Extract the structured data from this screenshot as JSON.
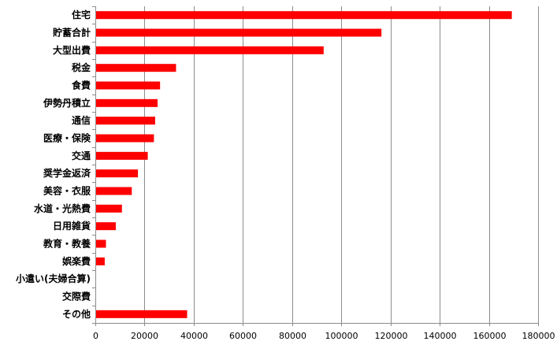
{
  "chart_data": {
    "type": "bar",
    "orientation": "horizontal",
    "categories": [
      "住宅",
      "貯蓄合計",
      "大型出費",
      "税金",
      "食費",
      "伊勢丹積立",
      "通信",
      "医療・保険",
      "交通",
      "奨学金返済",
      "美容・衣服",
      "水道・光熱費",
      "日用雑貨",
      "教育・教養",
      "娯楽費",
      "小遣い(夫婦合算)",
      "交際費",
      "その他"
    ],
    "values": [
      169000,
      116000,
      92500,
      32500,
      26000,
      25000,
      24000,
      23500,
      21000,
      17000,
      14500,
      10500,
      8000,
      4000,
      3500,
      0,
      0,
      37000
    ],
    "xlim": [
      0,
      180000
    ],
    "xticks": [
      0,
      20000,
      40000,
      60000,
      80000,
      100000,
      120000,
      140000,
      160000,
      180000
    ],
    "grid": true,
    "bar_color": "#ff0000",
    "title": "",
    "xlabel": "",
    "ylabel": ""
  }
}
